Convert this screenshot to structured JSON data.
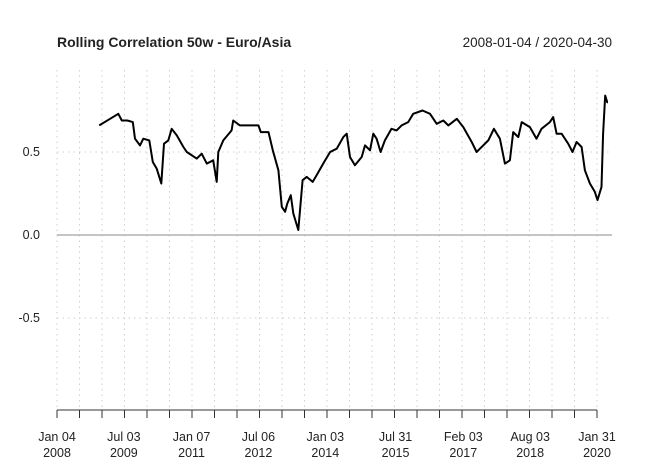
{
  "chart_data": {
    "type": "line",
    "title": "Rolling Correlation 50w - Euro/Asia",
    "date_range": "2008-01-04 / 2020-04-30",
    "xlabel": "",
    "ylabel": "",
    "xlim": [
      "2008-01-04",
      "2020-04-30"
    ],
    "ylim": [
      -1.05,
      1.0
    ],
    "grid": true,
    "line_color": "#000000",
    "zero_line_color": "#b0b0b0",
    "y_ticks": [
      {
        "value": 0.5,
        "label": "0.5"
      },
      {
        "value": 0.0,
        "label": "0.0"
      },
      {
        "value": -0.5,
        "label": "-0.5"
      }
    ],
    "x_ticks": [
      {
        "date": "2008-01-04",
        "label1": "Jan 04",
        "label2": "2008"
      },
      {
        "date": "2009-07-03",
        "label1": "Jul 03",
        "label2": "2009"
      },
      {
        "date": "2011-01-07",
        "label1": "Jan 07",
        "label2": "2011"
      },
      {
        "date": "2012-07-06",
        "label1": "Jul 06",
        "label2": "2012"
      },
      {
        "date": "2014-01-03",
        "label1": "Jan 03",
        "label2": "2014"
      },
      {
        "date": "2015-07-31",
        "label1": "Jul 31",
        "label2": "2015"
      },
      {
        "date": "2017-02-03",
        "label1": "Feb 03",
        "label2": "2017"
      },
      {
        "date": "2018-08-03",
        "label1": "Aug 03",
        "label2": "2018"
      },
      {
        "date": "2020-01-31",
        "label1": "Jan 31",
        "label2": "2020"
      }
    ],
    "series": [
      {
        "x": [
          "2008-12-14",
          "2009-03-13",
          "2009-05-19",
          "2009-06-16",
          "2009-07-31",
          "2009-09-14",
          "2009-10-02",
          "2009-11-12",
          "2009-12-09",
          "2010-01-27",
          "2010-02-24",
          "2010-03-28",
          "2010-05-05",
          "2010-05-27",
          "2010-07-01",
          "2010-07-29",
          "2010-09-08",
          "2010-11-01",
          "2010-11-29",
          "2011-02-18",
          "2011-03-31",
          "2011-05-11",
          "2011-07-03",
          "2011-07-31",
          "2011-08-13",
          "2011-09-23",
          "2011-11-30",
          "2011-12-13",
          "2012-02-06",
          "2012-07-06",
          "2012-07-25",
          "2012-09-26",
          "2012-10-31",
          "2012-12-16",
          "2013-01-13",
          "2013-02-09",
          "2013-02-27",
          "2013-03-27",
          "2013-04-17",
          "2013-05-28",
          "2013-07-02",
          "2013-08-04",
          "2013-09-22",
          "2013-10-24",
          "2013-12-17",
          "2014-02-11",
          "2014-04-06",
          "2014-05-30",
          "2014-06-27",
          "2014-07-24",
          "2014-09-02",
          "2014-10-27",
          "2014-11-23",
          "2015-01-03",
          "2015-01-30",
          "2015-02-26",
          "2015-03-31",
          "2015-05-05",
          "2015-06-28",
          "2015-08-08",
          "2015-09-18",
          "2015-11-11",
          "2015-12-22",
          "2016-03-07",
          "2016-05-07",
          "2016-07-01",
          "2016-08-24",
          "2016-10-04",
          "2016-12-12",
          "2017-02-03",
          "2017-04-13",
          "2017-05-23",
          "2017-07-16",
          "2017-08-26",
          "2017-10-11",
          "2017-11-29",
          "2018-01-09",
          "2018-02-19",
          "2018-03-18",
          "2018-04-28",
          "2018-05-26",
          "2018-08-01",
          "2018-09-24",
          "2018-11-04",
          "2019-01-11",
          "2019-02-07",
          "2019-03-07",
          "2019-04-17",
          "2019-06-10",
          "2019-07-15",
          "2019-08-17",
          "2019-09-27",
          "2019-10-24",
          "2019-12-04",
          "2020-01-13",
          "2020-02-04",
          "2020-03-08",
          "2020-03-21",
          "2020-04-07",
          "2020-04-23",
          "2020-04-30"
        ],
        "y": [
          0.66,
          0.7,
          0.73,
          0.69,
          0.69,
          0.68,
          0.58,
          0.54,
          0.58,
          0.57,
          0.44,
          0.4,
          0.31,
          0.55,
          0.57,
          0.64,
          0.6,
          0.53,
          0.5,
          0.46,
          0.49,
          0.43,
          0.45,
          0.32,
          0.5,
          0.57,
          0.63,
          0.69,
          0.66,
          0.66,
          0.62,
          0.62,
          0.51,
          0.39,
          0.17,
          0.14,
          0.19,
          0.24,
          0.13,
          0.03,
          0.33,
          0.35,
          0.32,
          0.36,
          0.43,
          0.5,
          0.52,
          0.59,
          0.61,
          0.47,
          0.42,
          0.47,
          0.54,
          0.51,
          0.61,
          0.58,
          0.5,
          0.57,
          0.64,
          0.63,
          0.66,
          0.68,
          0.73,
          0.75,
          0.73,
          0.67,
          0.69,
          0.66,
          0.7,
          0.65,
          0.56,
          0.5,
          0.54,
          0.57,
          0.64,
          0.58,
          0.43,
          0.45,
          0.62,
          0.59,
          0.68,
          0.65,
          0.58,
          0.64,
          0.68,
          0.71,
          0.61,
          0.61,
          0.55,
          0.5,
          0.56,
          0.53,
          0.39,
          0.31,
          0.26,
          0.21,
          0.29,
          0.61,
          0.84,
          0.8,
          0.8
        ]
      }
    ]
  }
}
